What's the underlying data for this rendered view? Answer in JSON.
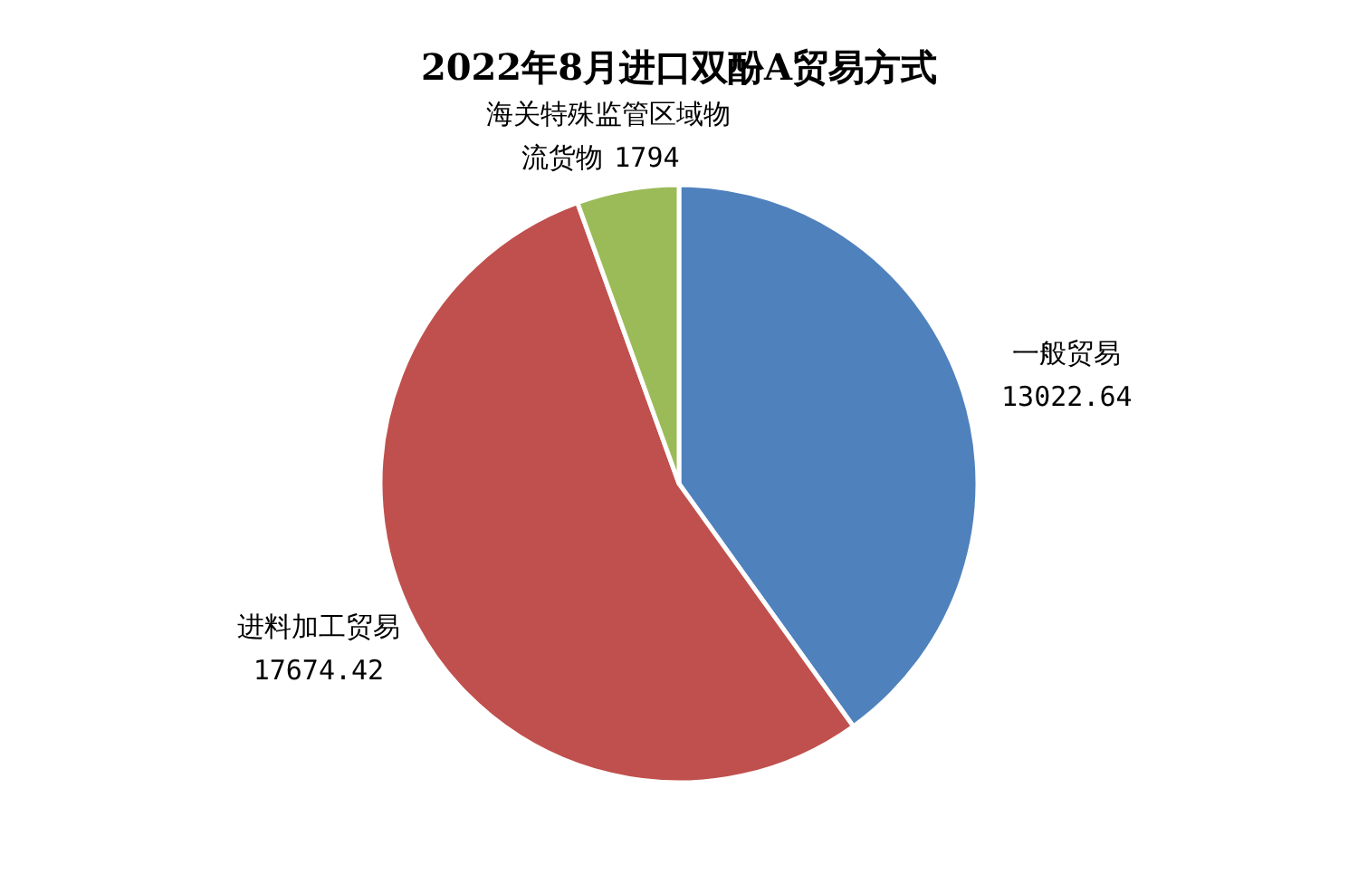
{
  "chart_data": {
    "type": "pie",
    "title": "2022年8月进口双酚A贸易方式",
    "categories": [
      "一般贸易",
      "进料加工贸易",
      "海关特殊监管区域物流货物"
    ],
    "values": [
      13022.64,
      17674.42,
      1794
    ],
    "colors": [
      "#4f81bd",
      "#c0504d",
      "#9bbb59"
    ],
    "data_labels": true,
    "legend": false
  }
}
